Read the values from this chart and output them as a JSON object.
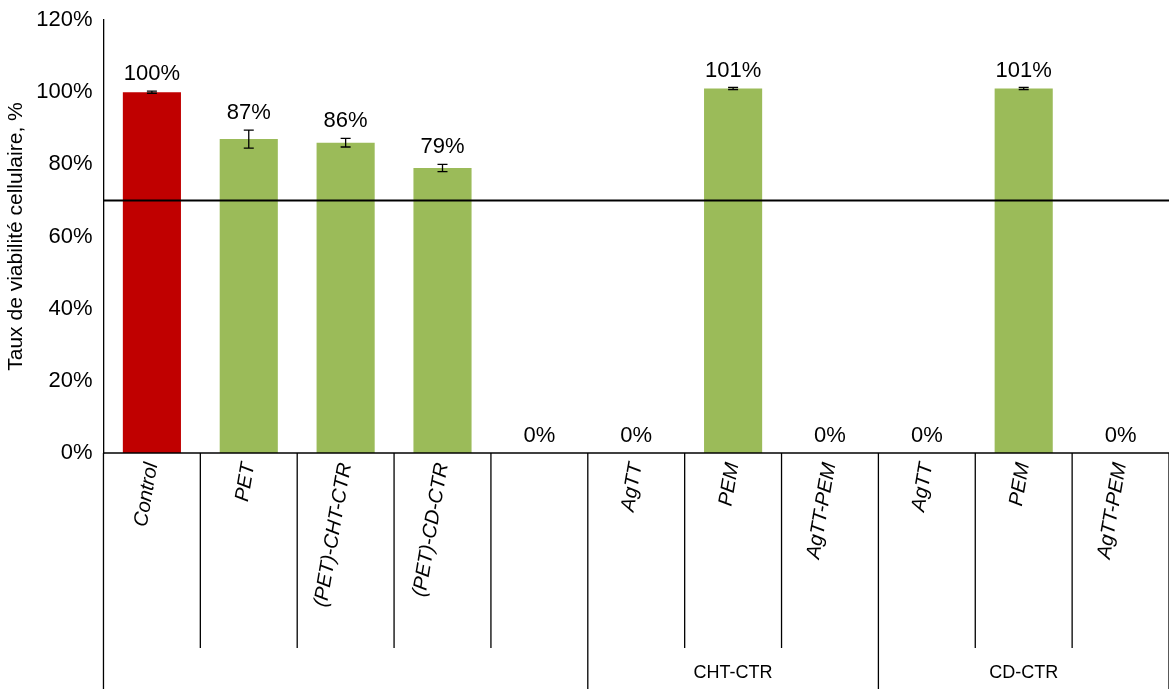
{
  "chart_data": {
    "type": "bar",
    "ylabel": "Taux de viabilité cellulaire, %",
    "categories": [
      "Control",
      "PET",
      "(PET)-CHT-CTR",
      "(PET)-CD-CTR",
      null,
      "AgTT",
      "PEM",
      "AgTT-PEM",
      "AgTT",
      "PEM",
      "AgTT-PEM"
    ],
    "values": [
      100,
      87,
      86,
      79,
      0,
      0,
      101,
      0,
      0,
      101,
      0
    ],
    "colors": [
      "#c00000",
      "#9bbb59",
      "#9bbb59",
      "#9bbb59",
      "#9bbb59",
      "#9bbb59",
      "#9bbb59",
      "#9bbb59",
      "#9bbb59",
      "#9bbb59",
      "#9bbb59"
    ],
    "errors": [
      0.3,
      2.5,
      1.2,
      1,
      null,
      null,
      0.3,
      null,
      null,
      0.3,
      null
    ],
    "value_labels": [
      "100%",
      "87%",
      "86%",
      "79%",
      "0%",
      "0%",
      "101%",
      "0%",
      "0%",
      "101%",
      "0%"
    ],
    "ylim": [
      0,
      120
    ],
    "yticks": [
      {
        "value": 0,
        "label": "0%"
      },
      {
        "value": 20,
        "label": "20%"
      },
      {
        "value": 40,
        "label": "40%"
      },
      {
        "value": 60,
        "label": "60%"
      },
      {
        "value": 80,
        "label": "80%"
      },
      {
        "value": 100,
        "label": "100%"
      },
      {
        "value": 120,
        "label": "120%"
      }
    ],
    "ref_lines": [
      {
        "axis": "y",
        "value": 70,
        "color": "#000000"
      }
    ],
    "annotations": [
      "CHT-CTR",
      "CD-CTR"
    ],
    "grid": false,
    "legend": false
  }
}
